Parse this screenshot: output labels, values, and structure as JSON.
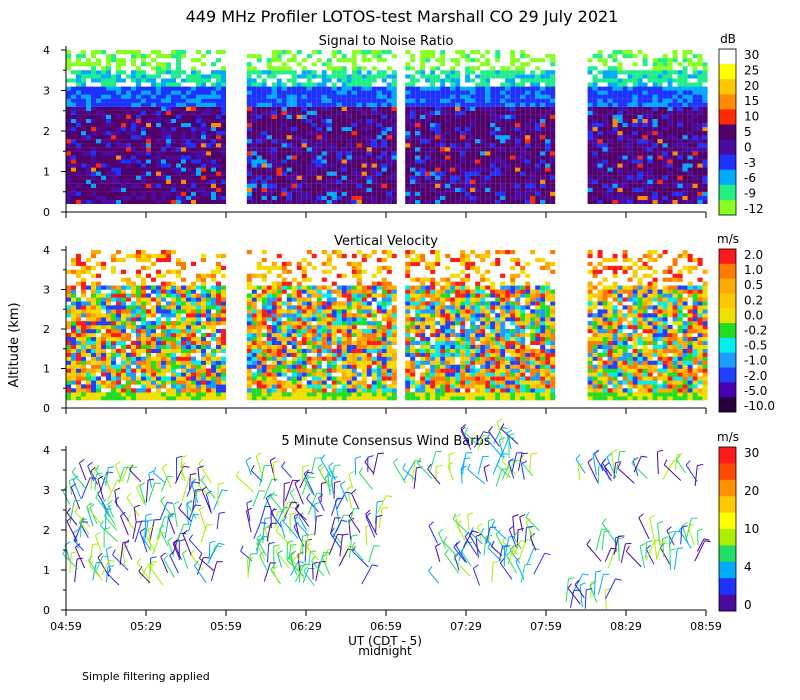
{
  "title": "449 MHz Profiler LOTOS-test Marshall CO 29 July 2021",
  "y_axis_label": "Altitude (km)",
  "x_axis_label": "UT (CDT - 5)",
  "midnight_label": "midnight",
  "footer_note": "Simple filtering applied",
  "chart_data": [
    {
      "type": "heatmap",
      "title": "Signal to Noise Ratio",
      "x_ticks": [
        "04:59",
        "05:29",
        "05:59",
        "06:29",
        "06:59",
        "07:29",
        "07:59",
        "08:29",
        "08:59"
      ],
      "y_ticks": [
        "0",
        "1",
        "2",
        "3",
        "4"
      ],
      "ylim": [
        0,
        4
      ],
      "unit": "dB",
      "colorbar": {
        "labels": [
          "30",
          "25",
          "20",
          "15",
          "10",
          "5",
          "0",
          "-3",
          "-6",
          "-9",
          "-12"
        ],
        "colors": [
          "#ffffff",
          "#ffff00",
          "#ffc800",
          "#ff8c00",
          "#ff2a00",
          "#52006a",
          "#4b0aa0",
          "#1e32ff",
          "#00aaff",
          "#22ee88",
          "#88ff22"
        ]
      },
      "data_blocks": [
        [
          4.99,
          5.99
        ],
        [
          6.12,
          7.04
        ],
        [
          7.11,
          8.03
        ],
        [
          8.25,
          8.99
        ]
      ],
      "description_bands": [
        {
          "from_km": 0.2,
          "to_km": 2.6,
          "dominant": "0 to 5 dB"
        },
        {
          "from_km": 2.6,
          "to_km": 3.2,
          "dominant": "-3 dB"
        },
        {
          "from_km": 3.2,
          "to_km": 4.0,
          "dominant": "-12 to -9 dB with gaps"
        }
      ]
    },
    {
      "type": "heatmap",
      "title": "Vertical Velocity",
      "x_ticks": [
        "04:59",
        "05:29",
        "05:59",
        "06:29",
        "06:59",
        "07:29",
        "07:59",
        "08:29",
        "08:59"
      ],
      "y_ticks": [
        "0",
        "1",
        "2",
        "3",
        "4"
      ],
      "ylim": [
        0,
        4
      ],
      "unit": "m/s",
      "colorbar": {
        "labels": [
          "2.0",
          "1.0",
          "0.5",
          "0.2",
          "0.0",
          "-0.2",
          "-0.5",
          "-1.0",
          "-2.0",
          "-5.0",
          "-10.0"
        ],
        "colors": [
          "#ff1a1a",
          "#ff7a00",
          "#ffaa00",
          "#ffc800",
          "#f0e000",
          "#22dd22",
          "#00eeee",
          "#1e9bff",
          "#2040ff",
          "#4a00b0",
          "#2a003c"
        ]
      },
      "data_blocks": [
        [
          4.99,
          5.99
        ],
        [
          6.12,
          7.04
        ],
        [
          7.11,
          8.03
        ],
        [
          8.25,
          8.99
        ]
      ]
    },
    {
      "type": "scatter",
      "title": "5 Minute Consensus Wind Barbs",
      "x_ticks": [
        "04:59",
        "05:29",
        "05:59",
        "06:29",
        "06:59",
        "07:29",
        "07:59",
        "08:29",
        "08:59"
      ],
      "y_ticks": [
        "0",
        "1",
        "2",
        "3",
        "4"
      ],
      "ylim": [
        0,
        4
      ],
      "unit": "m/s",
      "colorbar": {
        "labels": [
          "30",
          "20",
          "10",
          "4",
          "0"
        ],
        "colors": [
          "#ff1a1a",
          "#ff4a00",
          "#ff9000",
          "#ffc800",
          "#ffff00",
          "#aaf000",
          "#22dd66",
          "#00aaff",
          "#1e32ff",
          "#4b0aa0"
        ]
      },
      "clusters": [
        {
          "t": [
            5.0,
            5.95
          ],
          "km": [
            0.6,
            3.3
          ]
        },
        {
          "t": [
            6.12,
            6.95
          ],
          "km": [
            0.6,
            3.5
          ]
        },
        {
          "t": [
            7.1,
            7.95
          ],
          "km": [
            3.0,
            3.5
          ]
        },
        {
          "t": [
            7.3,
            7.95
          ],
          "km": [
            0.6,
            2.0
          ]
        },
        {
          "t": [
            8.15,
            8.95
          ],
          "km": [
            3.1,
            3.5
          ]
        },
        {
          "t": [
            8.3,
            8.95
          ],
          "km": [
            1.0,
            1.8
          ]
        },
        {
          "t": [
            7.5,
            7.85
          ],
          "km": [
            3.8,
            4.2
          ]
        },
        {
          "t": [
            8.1,
            8.4
          ],
          "km": [
            0.0,
            0.4
          ]
        }
      ]
    }
  ]
}
